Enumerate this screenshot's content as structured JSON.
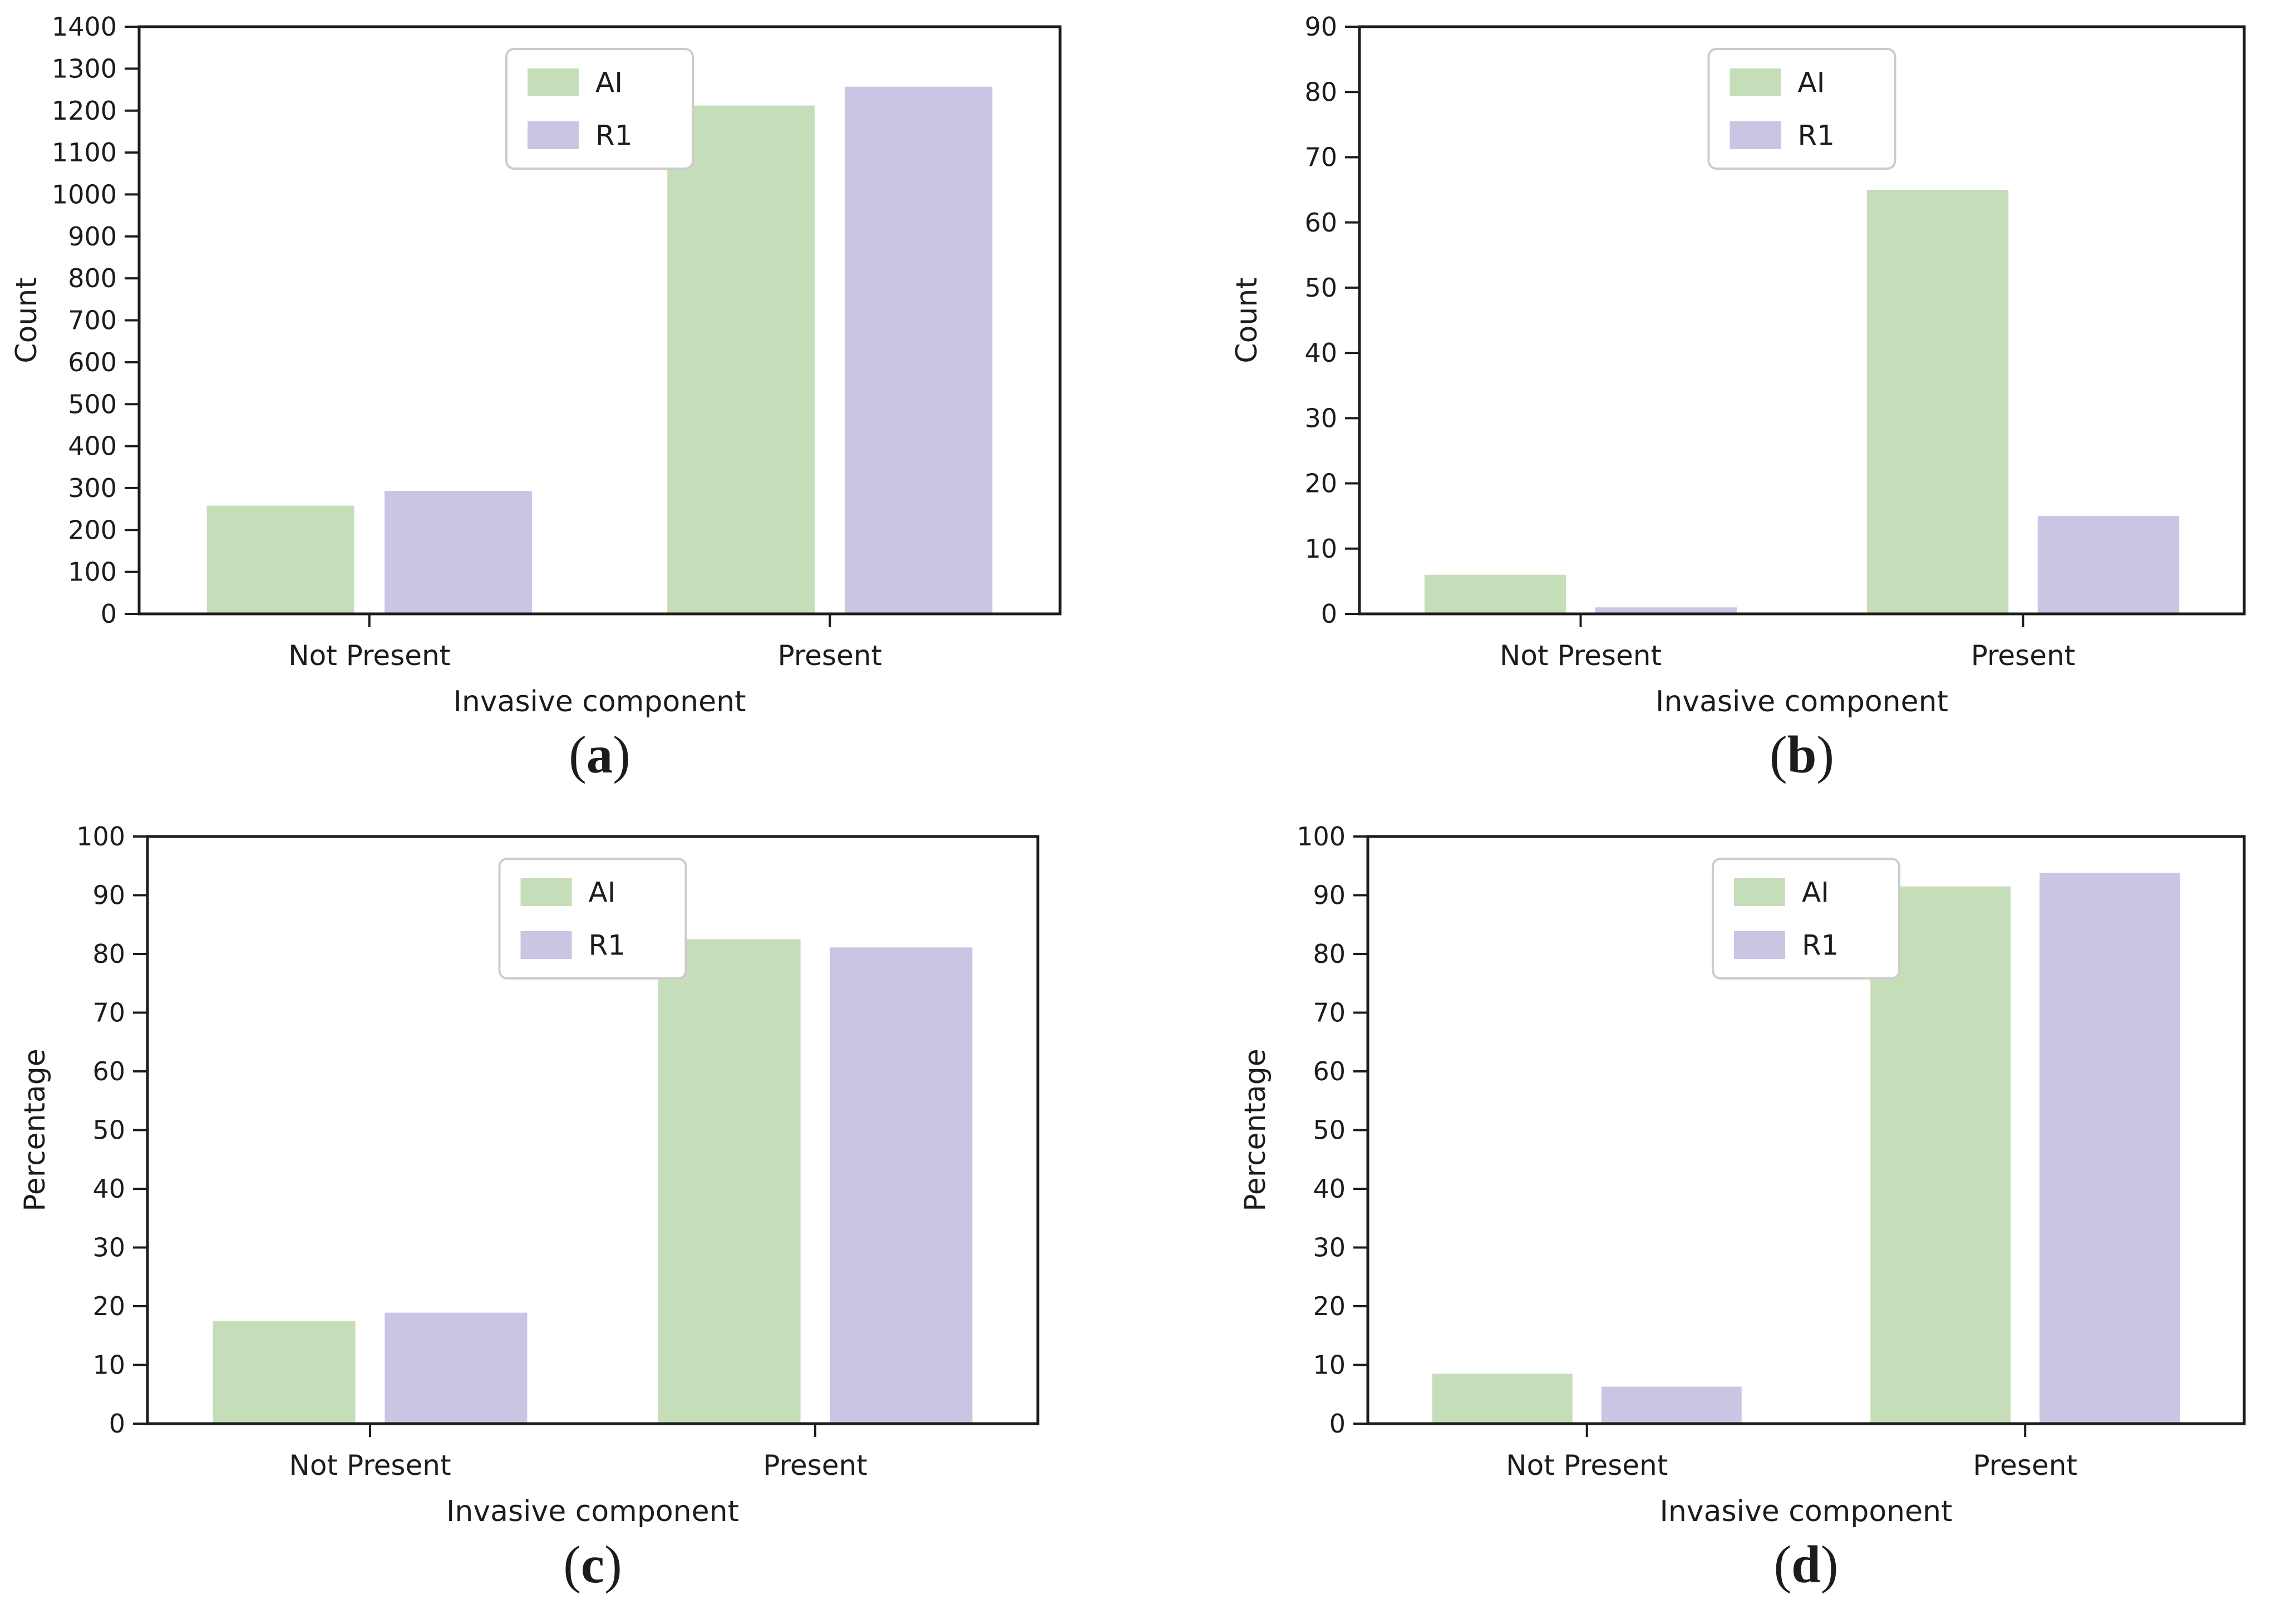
{
  "figure": {
    "background": "#ffffff",
    "text_color": "#1c1c1c",
    "axis_color": "#1c1c1c",
    "legend_border_color": "#cccccc",
    "legend_background": "#ffffff",
    "series_colors": {
      "AI": "#c5deb9",
      "R1": "#cbc4e2"
    }
  },
  "chart_data": [
    {
      "type": "bar",
      "panel": "a",
      "caption": "(a)",
      "title": "",
      "xlabel": "Invasive component",
      "ylabel": "Count",
      "categories": [
        "Not Present",
        "Present"
      ],
      "series": [
        {
          "name": "AI",
          "values": [
            258,
            1212
          ]
        },
        {
          "name": "R1",
          "values": [
            293,
            1257
          ]
        }
      ],
      "ylim": [
        0,
        1400
      ],
      "ytick_step": 100,
      "grid": false,
      "legend_entries": [
        "AI",
        "R1"
      ],
      "legend_position": "upper center",
      "layout": {
        "margin_left": 250,
        "margin_right": 158
      }
    },
    {
      "type": "bar",
      "panel": "b",
      "caption": "(b)",
      "title": "",
      "xlabel": "Invasive component",
      "ylabel": "Count",
      "categories": [
        "Not Present",
        "Present"
      ],
      "series": [
        {
          "name": "AI",
          "values": [
            6,
            65
          ]
        },
        {
          "name": "R1",
          "values": [
            1,
            15
          ]
        }
      ],
      "ylim": [
        0,
        90
      ],
      "ytick_step": 10,
      "grid": false,
      "legend_entries": [
        "AI",
        "R1"
      ],
      "legend_position": "upper center",
      "layout": {
        "margin_left": 380,
        "margin_right": 93
      }
    },
    {
      "type": "bar",
      "panel": "c",
      "caption": "(c)",
      "title": "",
      "xlabel": "Invasive component",
      "ylabel": "Percentage",
      "categories": [
        "Not Present",
        "Present"
      ],
      "series": [
        {
          "name": "AI",
          "values": [
            17.5,
            82.5
          ]
        },
        {
          "name": "R1",
          "values": [
            18.9,
            81.1
          ]
        }
      ],
      "ylim": [
        0,
        100
      ],
      "ytick_step": 10,
      "grid": false,
      "legend_entries": [
        "AI",
        "R1"
      ],
      "legend_position": "upper center",
      "layout": {
        "margin_left": 265,
        "margin_right": 198
      }
    },
    {
      "type": "bar",
      "panel": "d",
      "caption": "(d)",
      "title": "",
      "xlabel": "Invasive component",
      "ylabel": "Percentage",
      "categories": [
        "Not Present",
        "Present"
      ],
      "series": [
        {
          "name": "AI",
          "values": [
            8.5,
            91.5
          ]
        },
        {
          "name": "R1",
          "values": [
            6.3,
            93.8
          ]
        }
      ],
      "ylim": [
        0,
        100
      ],
      "ytick_step": 10,
      "grid": false,
      "legend_entries": [
        "AI",
        "R1"
      ],
      "legend_position": "upper center",
      "layout": {
        "margin_left": 395,
        "margin_right": 93
      }
    }
  ]
}
